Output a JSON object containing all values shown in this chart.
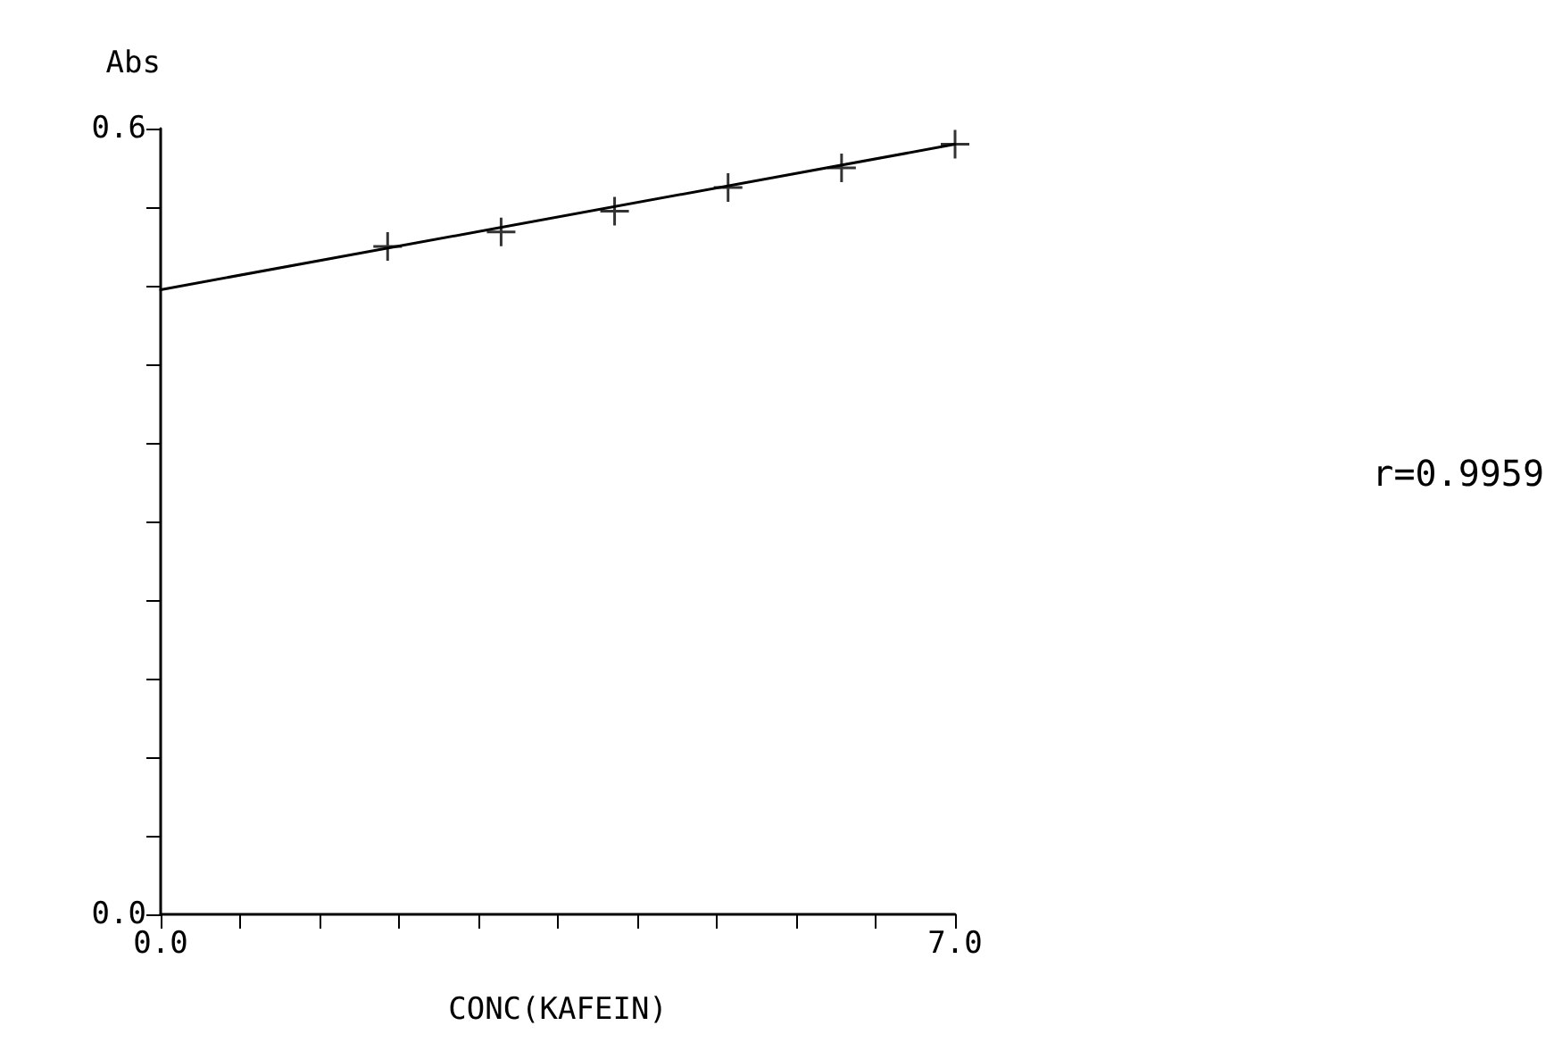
{
  "chart_data": {
    "type": "scatter",
    "ylabel": "Abs",
    "xlabel": "CONC(KAFEIN)",
    "xlim": [
      0,
      7
    ],
    "ylim": [
      0,
      0.6
    ],
    "xticks": [
      {
        "value": 0,
        "label": "0.0"
      },
      {
        "value": 0.7,
        "label": null
      },
      {
        "value": 1.4,
        "label": null
      },
      {
        "value": 2.1,
        "label": null
      },
      {
        "value": 2.8,
        "label": null
      },
      {
        "value": 3.5,
        "label": null
      },
      {
        "value": 4.2,
        "label": null
      },
      {
        "value": 4.9,
        "label": null
      },
      {
        "value": 5.6,
        "label": null
      },
      {
        "value": 6.3,
        "label": null
      },
      {
        "value": 7,
        "label": "7.0"
      }
    ],
    "yticks": [
      {
        "value": 0,
        "label": "0.0"
      },
      {
        "value": 0.06,
        "label": null
      },
      {
        "value": 0.12,
        "label": null
      },
      {
        "value": 0.18,
        "label": null
      },
      {
        "value": 0.24,
        "label": null
      },
      {
        "value": 0.3,
        "label": null
      },
      {
        "value": 0.36,
        "label": null
      },
      {
        "value": 0.42,
        "label": null
      },
      {
        "value": 0.48,
        "label": null
      },
      {
        "value": 0.54,
        "label": null
      },
      {
        "value": 0.6,
        "label": "0.6"
      }
    ],
    "grid": false,
    "series": [
      {
        "color": "#000000",
        "marker": "cross",
        "x": [
          2,
          3,
          4,
          5,
          6,
          7
        ],
        "values": [
          0.51,
          0.521,
          0.537,
          0.555,
          0.57,
          0.588
        ]
      },
      {
        "type": "line",
        "marker": "none",
        "color": "#000000",
        "x": [
          0,
          7
        ],
        "values": [
          0.477,
          0.588
        ]
      }
    ],
    "annotations": [
      "r=0.9959"
    ]
  }
}
